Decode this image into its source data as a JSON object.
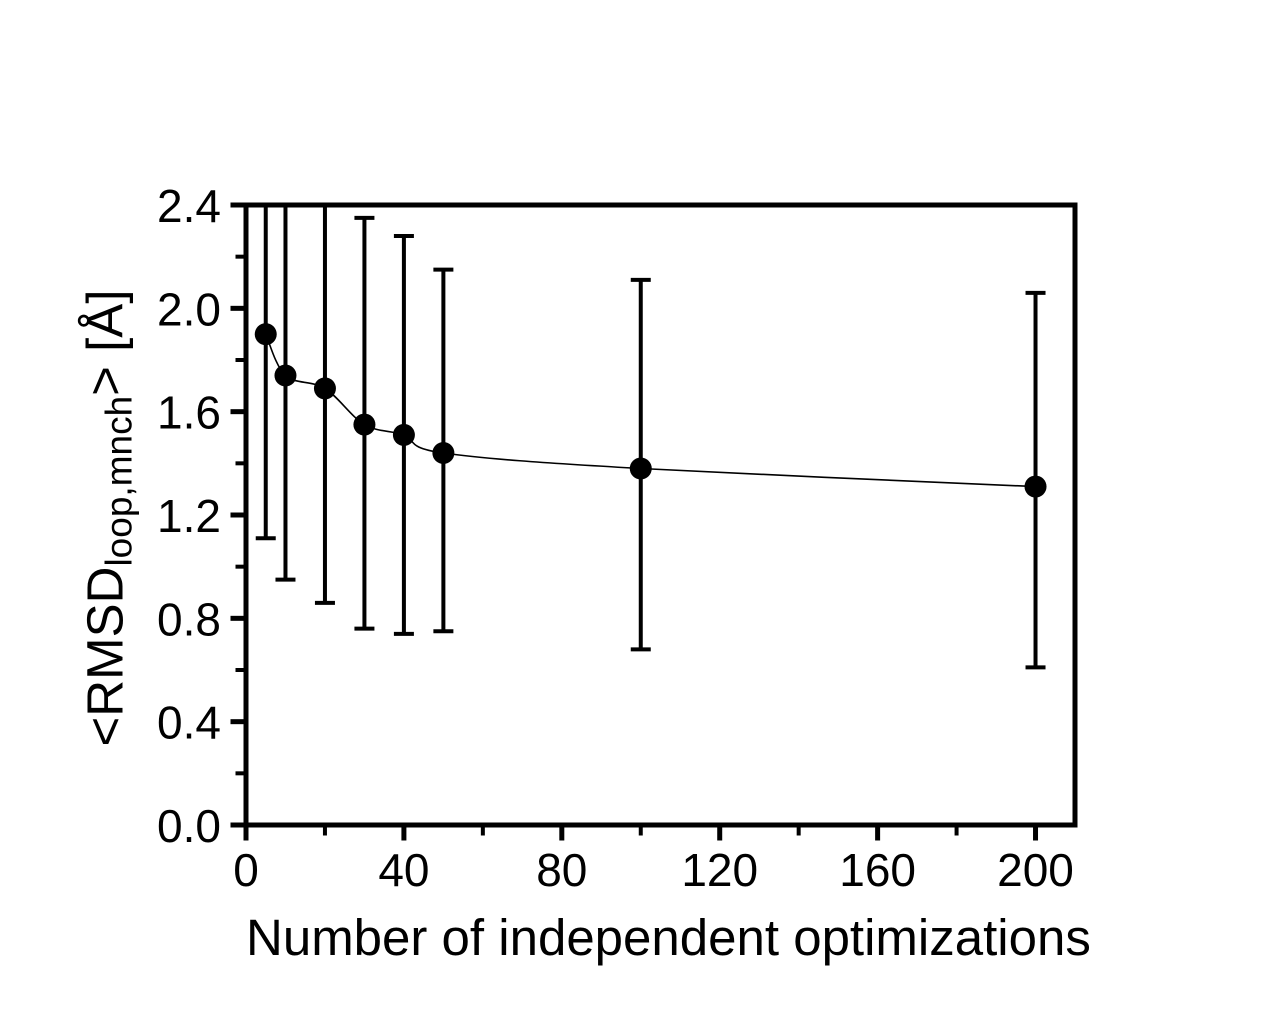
{
  "figure": {
    "background_color": "#ffffff",
    "foreground_color": "#000000"
  },
  "chart_data": {
    "type": "scatter",
    "title": "",
    "xlabel": "Number of independent optimizations",
    "ylabel_pre": "<RMSD",
    "ylabel_sub": "loop,mnch",
    "ylabel_post": "> [Å]",
    "xlim": [
      0,
      210
    ],
    "ylim": [
      0,
      2.4
    ],
    "grid": false,
    "legend": false,
    "x_major_ticks": [
      0,
      40,
      80,
      120,
      160,
      200
    ],
    "x_tick_labels": [
      "0",
      "40",
      "80",
      "120",
      "160",
      "200"
    ],
    "x_minor_ticks": [
      20,
      60,
      100,
      140,
      180
    ],
    "y_major_ticks": [
      0.0,
      0.4,
      0.8,
      1.2,
      1.6,
      2.0,
      2.4
    ],
    "y_tick_labels": [
      "0.0",
      "0.4",
      "0.8",
      "1.2",
      "1.6",
      "2.0",
      "2.4"
    ],
    "y_minor_ticks": [
      0.2,
      0.6,
      1.0,
      1.4,
      1.8,
      2.2
    ],
    "series": [
      {
        "marker": "filled-circle",
        "color": "#000000",
        "x": [
          5,
          10,
          20,
          30,
          40,
          50,
          100,
          200
        ],
        "y": [
          1.9,
          1.74,
          1.69,
          1.55,
          1.51,
          1.44,
          1.38,
          1.31
        ],
        "error_top": [
          2.4,
          2.4,
          2.4,
          2.35,
          2.28,
          2.15,
          2.11,
          2.06
        ],
        "error_top_clipped": [
          true,
          true,
          true,
          false,
          false,
          false,
          false,
          false
        ],
        "error_bottom": [
          1.11,
          0.95,
          0.86,
          0.76,
          0.74,
          0.75,
          0.68,
          0.61
        ]
      }
    ],
    "fit_curve_through_points": true
  }
}
